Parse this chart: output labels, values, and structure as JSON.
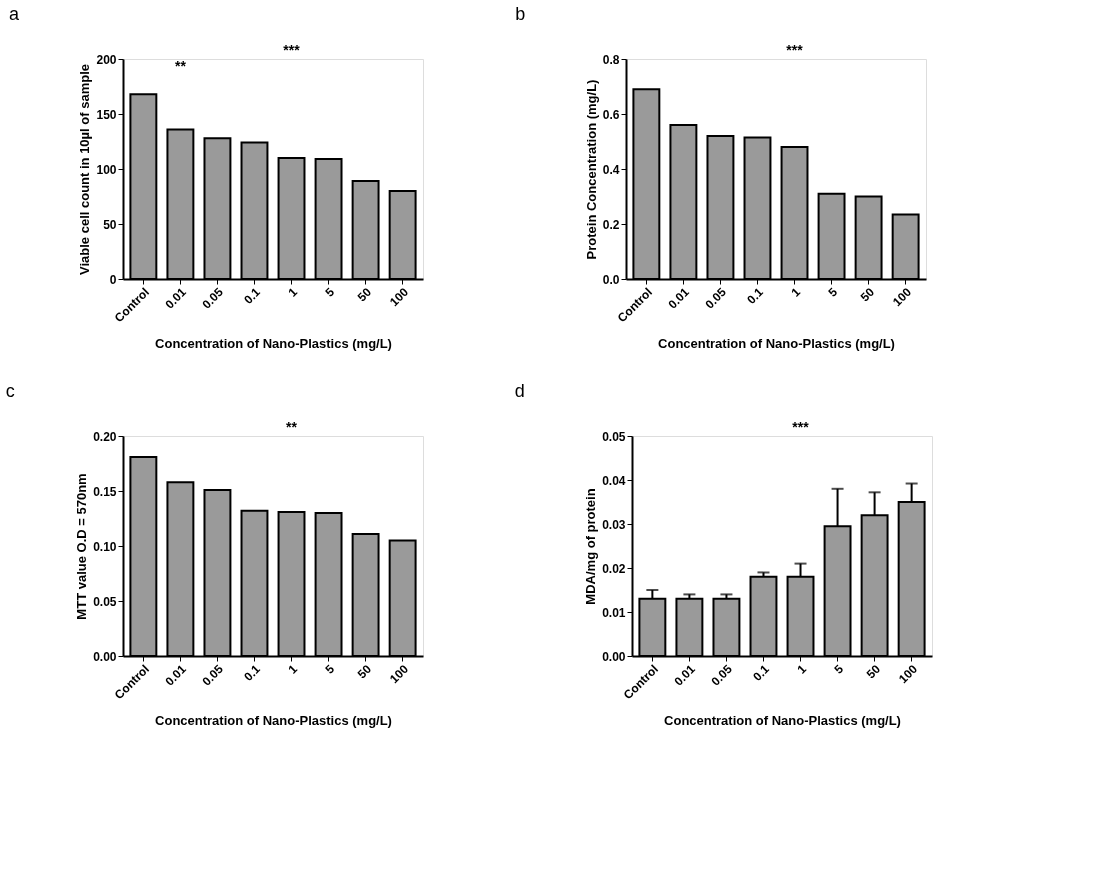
{
  "chart_data": [
    {
      "type": "bar",
      "title": "a",
      "xlabel": "Concentration of Nano-Plastics (mg/L)",
      "ylabel": "Viable cell count in 10µl of sample",
      "categories": [
        "Control",
        "0.01",
        "0.05",
        "0.1",
        "1",
        "5",
        "50",
        "100"
      ],
      "values": [
        168,
        136,
        128,
        124,
        110,
        109,
        89,
        80
      ],
      "color": "#9a9a9a",
      "ylim": [
        0,
        200
      ],
      "yticks": [
        0,
        50,
        100,
        150,
        200
      ],
      "grid": false,
      "annotations": [
        "***",
        "**"
      ]
    },
    {
      "type": "bar",
      "title": "b",
      "xlabel": "Concentration of Nano-Plastics (mg/L)",
      "ylabel": "Protein Concentration (mg/L)",
      "categories": [
        "Control",
        "0.01",
        "0.05",
        "0.1",
        "1",
        "5",
        "50",
        "100"
      ],
      "values": [
        0.69,
        0.56,
        0.52,
        0.515,
        0.48,
        0.31,
        0.3,
        0.235
      ],
      "color": "#9a9a9a",
      "ylim": [
        0,
        0.8
      ],
      "yticks": [
        {
          "value": 0,
          "label": "0.0"
        },
        0.2,
        0.4,
        0.6,
        0.8
      ],
      "grid": false,
      "annotations": [
        "***"
      ]
    },
    {
      "type": "bar",
      "title": "c",
      "xlabel": "Concentration of Nano-Plastics (mg/L)",
      "ylabel": "MTT value O.D = 570nm",
      "categories": [
        "Control",
        "0.01",
        "0.05",
        "0.1",
        "1",
        "5",
        "50",
        "100"
      ],
      "values": [
        0.181,
        0.158,
        0.151,
        0.132,
        0.131,
        0.13,
        0.111,
        0.105
      ],
      "color": "#9a9a9a",
      "ylim": [
        0,
        0.2
      ],
      "yticks": [
        {
          "value": 0,
          "label": "0.00"
        },
        0.05,
        {
          "value": 0.1,
          "label": "0.10"
        },
        0.15,
        {
          "value": 0.2,
          "label": "0.20"
        }
      ],
      "grid": false,
      "annotations": [
        "**"
      ]
    },
    {
      "type": "bar",
      "title": "d",
      "xlabel": "Concentration of Nano-Plastics (mg/L)",
      "ylabel": "MDA/mg of protein",
      "categories": [
        "Control",
        "0.01",
        "0.05",
        "0.1",
        "1",
        "5",
        "50",
        "100"
      ],
      "values": [
        0.013,
        0.013,
        0.013,
        0.018,
        0.018,
        0.0295,
        0.032,
        0.035
      ],
      "errors": [
        0.002,
        0.001,
        0.001,
        0.001,
        0.003,
        0.0085,
        0.0052,
        0.0042
      ],
      "color": "#9a9a9a",
      "ylim": [
        0,
        0.05
      ],
      "yticks": [
        {
          "value": 0,
          "label": "0.00"
        },
        0.01,
        0.02,
        0.03,
        0.04,
        0.05
      ],
      "grid": false,
      "annotations": [
        "***"
      ]
    }
  ]
}
